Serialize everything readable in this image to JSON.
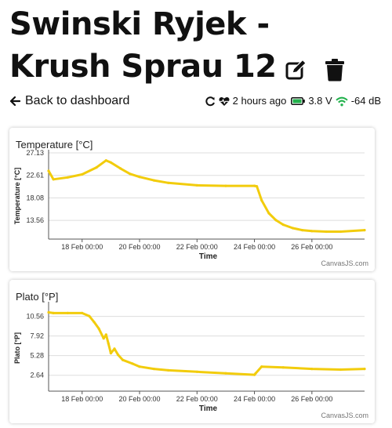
{
  "header": {
    "title_line1": "Swinski Ryjek -",
    "title_line2": "Krush Sprau 12",
    "edit_icon": "edit-icon",
    "delete_icon": "trash-icon"
  },
  "nav": {
    "back_label": "Back to dashboard",
    "back_icon": "arrow-left-icon"
  },
  "status": {
    "refresh_icon": "refresh-icon",
    "heartbeat_icon": "heartbeat-icon",
    "last_seen": "2 hours ago",
    "battery_icon": "battery-icon",
    "battery_voltage": "3.8 V",
    "wifi_icon": "wifi-icon",
    "signal": "-64 dB"
  },
  "colors": {
    "series": "#F2CC0C",
    "battery": "#22B14C",
    "wifi": "#22B14C"
  },
  "chart_data": [
    {
      "type": "line",
      "title": "Temperature [°C]",
      "xlabel": "Time",
      "ylabel": "Temperature [°C]",
      "ylim": [
        9.8,
        27.13
      ],
      "xlim": [
        "2024-02-16 20:00",
        "2024-02-27 20:00"
      ],
      "yticks": [
        "27.13",
        "22.61",
        "18.08",
        "13.56"
      ],
      "xticks": [
        "18 Feb 00:00",
        "20 Feb 00:00",
        "22 Feb 00:00",
        "24 Feb 00:00",
        "26 Feb 00:00"
      ],
      "credit": "CanvasJS.com",
      "grid": true,
      "series": [
        {
          "x": [
            "2024-02-16 20:00",
            "2024-02-17 00:00",
            "2024-02-17 12:00",
            "2024-02-18 00:00",
            "2024-02-18 12:00",
            "2024-02-18 20:00",
            "2024-02-19 00:00",
            "2024-02-19 08:00",
            "2024-02-19 16:00",
            "2024-02-20 00:00",
            "2024-02-20 12:00",
            "2024-02-21 00:00",
            "2024-02-22 00:00",
            "2024-02-23 00:00",
            "2024-02-24 00:00",
            "2024-02-24 02:00",
            "2024-02-24 06:00",
            "2024-02-24 12:00",
            "2024-02-24 18:00",
            "2024-02-25 00:00",
            "2024-02-25 08:00",
            "2024-02-25 16:00",
            "2024-02-26 00:00",
            "2024-02-26 12:00",
            "2024-02-27 00:00",
            "2024-02-27 20:00"
          ],
          "y": [
            23.5,
            21.8,
            22.2,
            22.8,
            24.2,
            25.6,
            25.2,
            24.0,
            22.9,
            22.3,
            21.6,
            21.1,
            20.6,
            20.5,
            20.5,
            20.4,
            17.6,
            15.0,
            13.6,
            12.7,
            12.0,
            11.6,
            11.4,
            11.3,
            11.3,
            11.6
          ]
        }
      ]
    },
    {
      "type": "line",
      "title": "Plato [°P]",
      "xlabel": "Time",
      "ylabel": "Plato [°P]",
      "ylim": [
        0.5,
        12.1
      ],
      "xlim": [
        "2024-02-16 20:00",
        "2024-02-27 20:00"
      ],
      "yticks": [
        "10.56",
        "7.92",
        "5.28",
        "2.64"
      ],
      "xticks": [
        "18 Feb 00:00",
        "20 Feb 00:00",
        "22 Feb 00:00",
        "24 Feb 00:00",
        "26 Feb 00:00"
      ],
      "credit": "CanvasJS.com",
      "grid": true,
      "series": [
        {
          "x": [
            "2024-02-16 20:00",
            "2024-02-17 00:00",
            "2024-02-17 12:00",
            "2024-02-18 00:00",
            "2024-02-18 06:00",
            "2024-02-18 10:00",
            "2024-02-18 14:00",
            "2024-02-18 18:00",
            "2024-02-18 20:00",
            "2024-02-18 22:00",
            "2024-02-19 00:00",
            "2024-02-19 03:00",
            "2024-02-19 06:00",
            "2024-02-19 10:00",
            "2024-02-19 18:00",
            "2024-02-20 00:00",
            "2024-02-20 12:00",
            "2024-02-21 00:00",
            "2024-02-22 00:00",
            "2024-02-23 00:00",
            "2024-02-24 00:00",
            "2024-02-24 01:00",
            "2024-02-24 06:00",
            "2024-02-25 00:00",
            "2024-02-26 00:00",
            "2024-02-27 00:00",
            "2024-02-27 20:00"
          ],
          "y": [
            11.1,
            11.0,
            11.0,
            11.0,
            10.6,
            9.8,
            8.9,
            7.6,
            8.1,
            6.9,
            5.6,
            6.2,
            5.4,
            4.7,
            4.2,
            3.8,
            3.5,
            3.3,
            3.1,
            2.9,
            2.7,
            2.9,
            3.8,
            3.7,
            3.5,
            3.4,
            3.5
          ]
        }
      ]
    }
  ]
}
